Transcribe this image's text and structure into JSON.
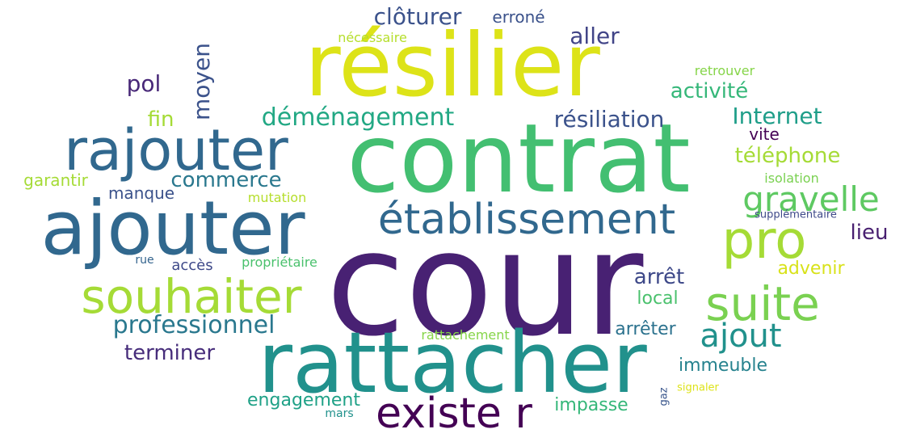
{
  "words": [
    {
      "text": "cour",
      "color": "#482173"
    },
    {
      "text": "contrat",
      "color": "#43bf71"
    },
    {
      "text": "résilier",
      "color": "#dde318"
    },
    {
      "text": "rattacher",
      "color": "#21918c"
    },
    {
      "text": "ajouter",
      "color": "#31688e"
    },
    {
      "text": "rajouter",
      "color": "#31688e"
    },
    {
      "text": "établissement",
      "color": "#31688e"
    },
    {
      "text": "souhaiter",
      "color": "#a5db36"
    },
    {
      "text": "suite",
      "color": "#7ad151"
    },
    {
      "text": "pro",
      "color": "#a5db36"
    },
    {
      "text": "existe r",
      "color": "#440154"
    },
    {
      "text": "gravelle",
      "color": "#5ec962"
    },
    {
      "text": "ajout",
      "color": "#21918c"
    },
    {
      "text": "professionnel",
      "color": "#2a788e"
    },
    {
      "text": "déménagement",
      "color": "#22a884"
    },
    {
      "text": "résiliation",
      "color": "#3b528b"
    },
    {
      "text": "Internet",
      "color": "#1f9e89"
    },
    {
      "text": "clôturer",
      "color": "#3b528b"
    },
    {
      "text": "aller",
      "color": "#414487"
    },
    {
      "text": "activité",
      "color": "#35b779"
    },
    {
      "text": "téléphone",
      "color": "#a5db36"
    },
    {
      "text": "commerce",
      "color": "#2a788e"
    },
    {
      "text": "pol",
      "color": "#482878"
    },
    {
      "text": "moyen",
      "color": "#3b528b"
    },
    {
      "text": "fin",
      "color": "#a5db36"
    },
    {
      "text": "terminer",
      "color": "#472d7b"
    },
    {
      "text": "arrêt",
      "color": "#3e4989"
    },
    {
      "text": "lieu",
      "color": "#481f70"
    },
    {
      "text": "engagement",
      "color": "#1fa187"
    },
    {
      "text": "immeuble",
      "color": "#26828e"
    },
    {
      "text": "impasse",
      "color": "#35b779"
    },
    {
      "text": "arrêter",
      "color": "#2c728e"
    },
    {
      "text": "local",
      "color": "#4ac16d"
    },
    {
      "text": "advenir",
      "color": "#d8e219"
    },
    {
      "text": "manque",
      "color": "#3b528b"
    },
    {
      "text": "garantir",
      "color": "#a5db36"
    },
    {
      "text": "accès",
      "color": "#3e4989"
    },
    {
      "text": "erroné",
      "color": "#3b528b"
    },
    {
      "text": "vite",
      "color": "#440154"
    },
    {
      "text": "mutation",
      "color": "#b5de2b"
    },
    {
      "text": "propriétaire",
      "color": "#4ac16d"
    },
    {
      "text": "rattachement",
      "color": "#86d549"
    },
    {
      "text": "nécessaire",
      "color": "#b5de2b"
    },
    {
      "text": "retrouver",
      "color": "#86d549"
    },
    {
      "text": "isolation",
      "color": "#7ad151"
    },
    {
      "text": "supplémentaire",
      "color": "#3e4989"
    },
    {
      "text": "rue",
      "color": "#33638d"
    },
    {
      "text": "mars",
      "color": "#21918c"
    },
    {
      "text": "gaz",
      "color": "#39568c"
    },
    {
      "text": "signaler",
      "color": "#dde318"
    }
  ]
}
